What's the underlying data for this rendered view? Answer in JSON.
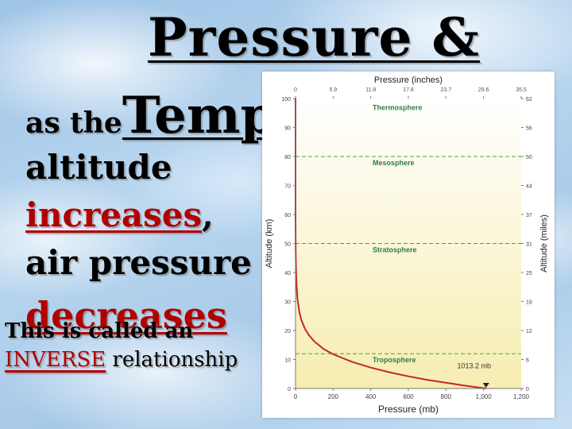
{
  "slide": {
    "title": "Pressure &",
    "line1_prefix": "as the",
    "line1_big": "Temp",
    "line2": "altitude",
    "line3_red": "increases",
    "line3_comma": ",",
    "line4": "air pressure",
    "line5_red": "decreases",
    "line6": "This is called an",
    "line7_red": "INVERSE",
    "line7_rest": " relationship"
  },
  "colors": {
    "curve": "#c4262b",
    "dashed": "#3aa842",
    "layer_label": "#2e7d4b",
    "background_top": "#ffffff",
    "background_bottom": "#f6edb0"
  },
  "chart_data": {
    "type": "line",
    "title": "",
    "xlabel": "Pressure (mb)",
    "x2label": "Pressure (inches)",
    "ylabel": "Altitude (km)",
    "y2label": "Altitude (miles)",
    "xlim": [
      0,
      1200
    ],
    "ylim": [
      0,
      100
    ],
    "x_ticks": [
      "0",
      "200",
      "400",
      "600",
      "800",
      "1,000",
      "1,200"
    ],
    "x2_ticks": [
      "0",
      "5.9",
      "11.8",
      "17.8",
      "23.7",
      "29.6",
      "35.5"
    ],
    "y_ticks": [
      "0",
      "10",
      "20",
      "30",
      "40",
      "50",
      "60",
      "70",
      "80",
      "90",
      "100"
    ],
    "y2_ticks": [
      "0",
      "6",
      "12",
      "19",
      "25",
      "31",
      "37",
      "44",
      "50",
      "56",
      "62"
    ],
    "layers": [
      {
        "name": "Thermosphere",
        "y": 96
      },
      {
        "name": "Mesosphere",
        "y": 77
      },
      {
        "name": "Stratosphere",
        "y": 47
      },
      {
        "name": "Troposphere",
        "y": 9
      }
    ],
    "boundaries": [
      12,
      50,
      80
    ],
    "surface_label": "1013.2 mb",
    "surface_point": {
      "x": 1013.2,
      "y": 0
    },
    "series": [
      {
        "x": [
          1013.2,
          900,
          800,
          700,
          600,
          500,
          400,
          300,
          200,
          150,
          100,
          70,
          50,
          30,
          20,
          10,
          5,
          2,
          1,
          0.5,
          0.2,
          0.1,
          0.03,
          0.01,
          0.003,
          0.001,
          0.0003
        ],
        "values": [
          0,
          1,
          2,
          3,
          4.2,
          5.6,
          7.2,
          9.2,
          11.8,
          13.6,
          16.2,
          18.5,
          20.6,
          23.8,
          26.5,
          31,
          36,
          42.5,
          48,
          53,
          59,
          64,
          72,
          80,
          86,
          92,
          100
        ]
      }
    ]
  }
}
